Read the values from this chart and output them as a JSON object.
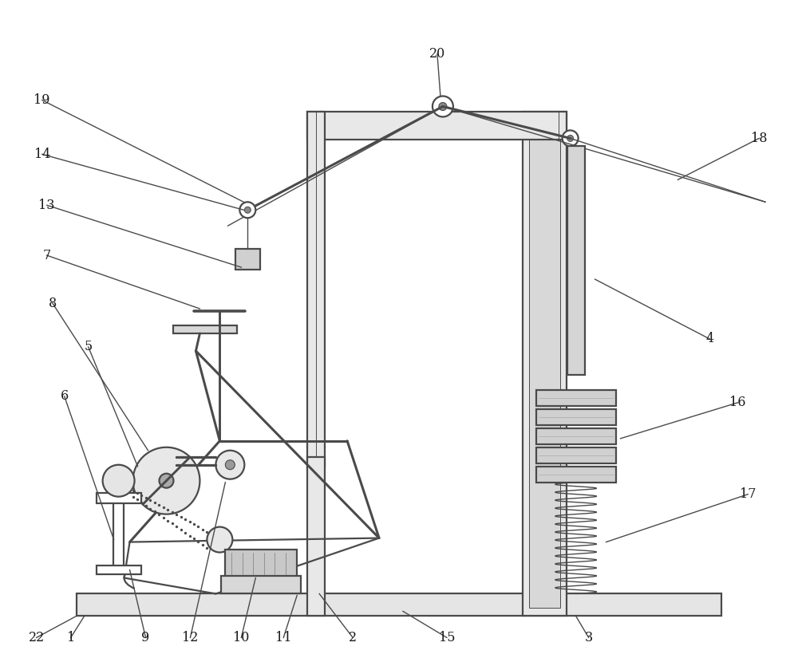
{
  "bg_color": "#ffffff",
  "line_color": "#4a4a4a",
  "label_color": "#1a1a1a",
  "figsize": [
    10.0,
    8.35
  ],
  "dpi": 100,
  "lw_main": 1.6,
  "lw_thin": 1.0,
  "lw_thick": 2.2
}
